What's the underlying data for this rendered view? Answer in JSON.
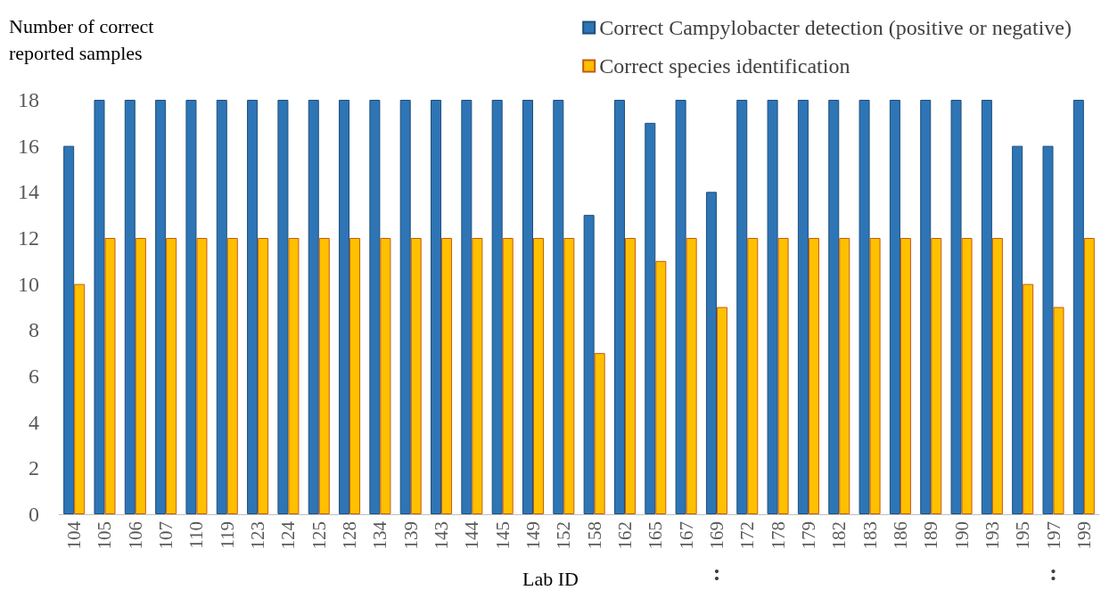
{
  "chart_data": {
    "type": "bar",
    "ylabel": "Number of correct\nreported samples",
    "xlabel": "Lab ID",
    "categories": [
      "104",
      "105",
      "106",
      "107",
      "110",
      "119",
      "123",
      "124",
      "125",
      "128",
      "134",
      "139",
      "143",
      "144",
      "145",
      "149",
      "152",
      "158",
      "162",
      "165",
      "167",
      "169",
      "172",
      "178",
      "179",
      "182",
      "183",
      "186",
      "189",
      "190",
      "193",
      "195",
      "197",
      "199"
    ],
    "series": [
      {
        "name": "Correct Campylobacter detection (positive or negative)",
        "color": "#2e75b6",
        "values": [
          16,
          18,
          18,
          18,
          18,
          18,
          18,
          18,
          18,
          18,
          18,
          18,
          18,
          18,
          18,
          18,
          18,
          13,
          18,
          17,
          18,
          14,
          18,
          18,
          18,
          18,
          18,
          18,
          18,
          18,
          18,
          16,
          16,
          18
        ]
      },
      {
        "name": "Correct species identification",
        "color": "#ffc000",
        "values": [
          10,
          12,
          12,
          12,
          12,
          12,
          12,
          12,
          12,
          12,
          12,
          12,
          12,
          12,
          12,
          12,
          12,
          7,
          12,
          11,
          12,
          9,
          12,
          12,
          12,
          12,
          12,
          12,
          12,
          12,
          12,
          10,
          9,
          12
        ]
      }
    ],
    "ylim": [
      0,
      18
    ],
    "yticks": [
      0,
      2,
      4,
      6,
      8,
      10,
      12,
      14,
      16,
      18
    ],
    "grid": false,
    "legend": "top right",
    "annotations": [
      ":",
      ":"
    ]
  }
}
